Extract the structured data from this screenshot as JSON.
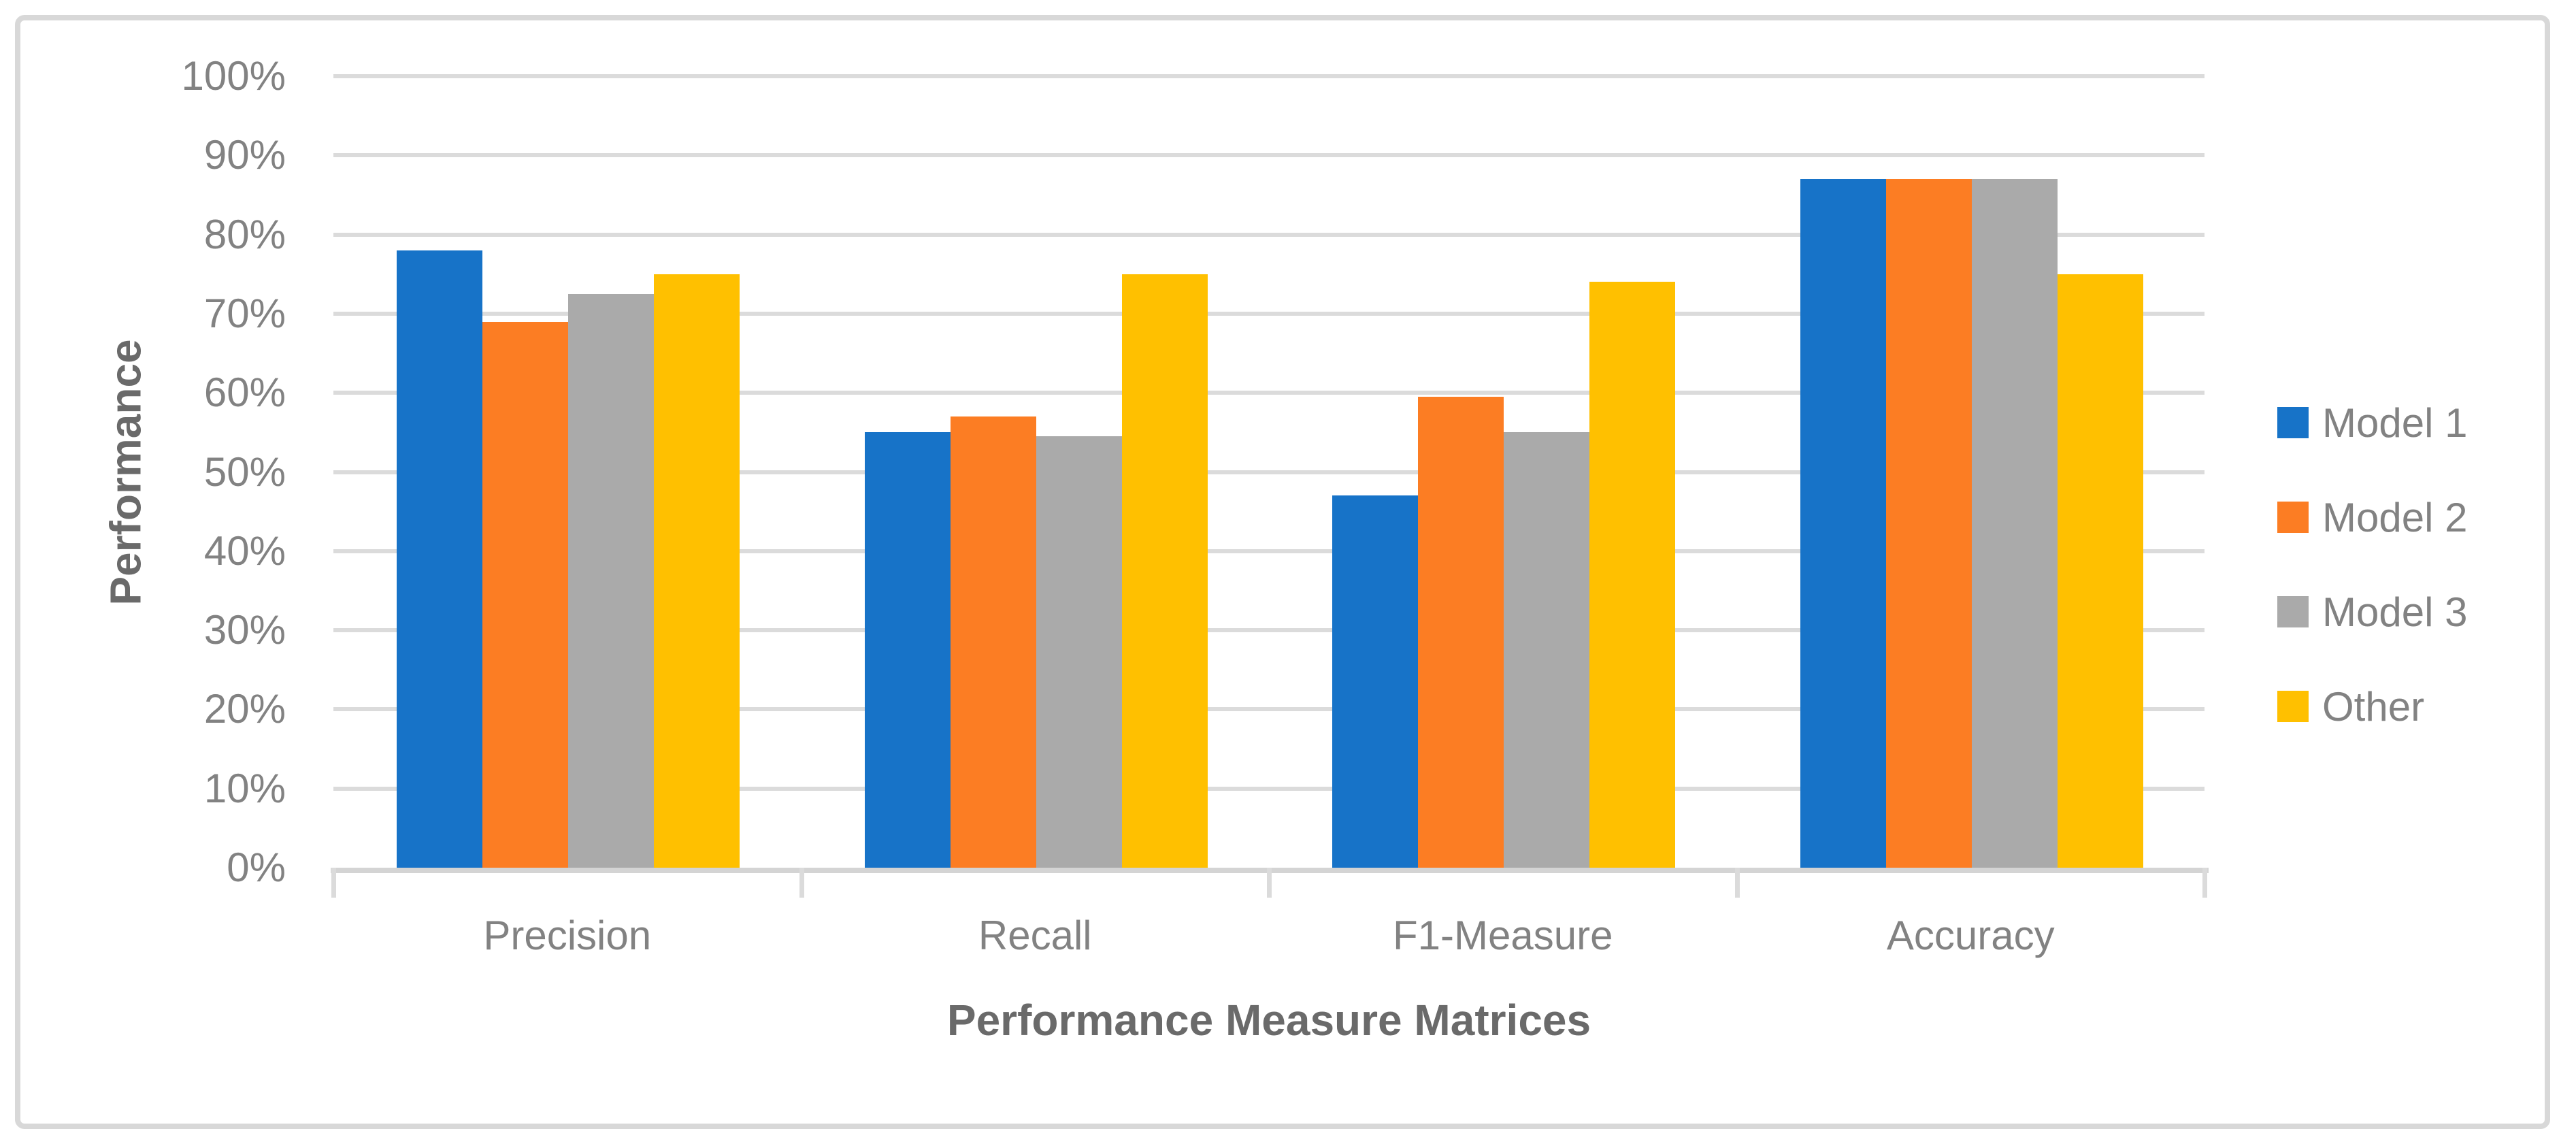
{
  "chart_data": {
    "type": "bar",
    "title": "",
    "categories": [
      "Precision",
      "Recall",
      "F1-Measure",
      "Accuracy"
    ],
    "series": [
      {
        "name": "Model 1",
        "color": "#1773C8",
        "values": [
          78,
          55,
          47,
          87
        ]
      },
      {
        "name": "Model 2",
        "color": "#FC7D23",
        "values": [
          69,
          57,
          59.5,
          87
        ]
      },
      {
        "name": "Model 3",
        "color": "#AAAAAA",
        "values": [
          72.5,
          54.5,
          55,
          87
        ]
      },
      {
        "name": "Other",
        "color": "#FFC000",
        "values": [
          75,
          75,
          74,
          75
        ]
      }
    ],
    "xlabel": "Performance Measure Matrices",
    "ylabel": "Performance",
    "ylim": [
      0,
      100
    ],
    "ytick_step": 10,
    "yticks": [
      "0%",
      "10%",
      "20%",
      "30%",
      "40%",
      "50%",
      "60%",
      "70%",
      "80%",
      "90%",
      "100%"
    ],
    "grid": "horizontal",
    "legend_position": "right",
    "colors": {
      "gridline": "#DBDBDB",
      "axis_line": "#D4D4D4",
      "tick_text": "#828282",
      "axis_title_text": "#6A6A6A",
      "frame_border": "#D8D8D8",
      "background": "#FFFFFF"
    }
  }
}
